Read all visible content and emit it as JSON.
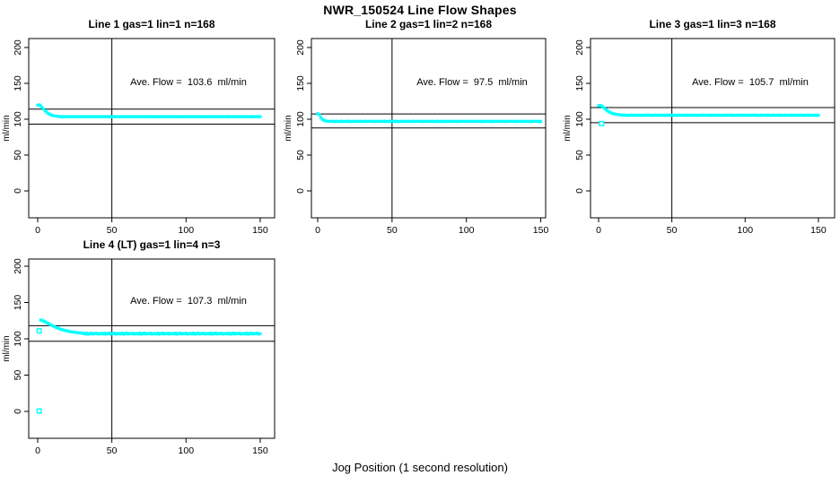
{
  "figure": {
    "title": "NWR_150524  Line Flow Shapes",
    "xlabel": "Jog Position (1 second resolution)",
    "background": "#ffffff",
    "axis_color": "#000000",
    "marker_color": "#00ffff"
  },
  "chart_data": [
    {
      "type": "scatter",
      "title": "Line 1 gas=1 lin=1 n=168",
      "annotation": "Ave. Flow =  103.6  ml/min",
      "ave_flow_ml_min": 103.6,
      "ylabel": "ml/min",
      "x_ticks": [
        0,
        50,
        100,
        150
      ],
      "y_ticks": [
        0,
        50,
        100,
        150,
        200
      ],
      "xlim": [
        -6,
        156
      ],
      "ylim": [
        -37,
        212
      ],
      "vline_x": 50,
      "hlines": [
        114.0,
        93.2
      ],
      "grid": false,
      "series": {
        "x_start": 0,
        "x_step": 1,
        "y": [
          119.5,
          120.0,
          118.8,
          116.5,
          114.0,
          111.8,
          110.0,
          108.3,
          107.0,
          106.0,
          105.3,
          104.8,
          104.4,
          104.1,
          103.9,
          103.6,
          103.3,
          103.7,
          103.2,
          103.5,
          103.8,
          103.4,
          103.6,
          103.6,
          103.3,
          103.7,
          103.2,
          103.5,
          103.8,
          103.4,
          103.6,
          103.6,
          103.3,
          103.7,
          103.2,
          103.5,
          103.8,
          103.4,
          103.6,
          103.6,
          103.3,
          103.7,
          103.2,
          103.5,
          103.8,
          103.4,
          103.6,
          103.6,
          103.3,
          103.7,
          103.2,
          103.5,
          103.8,
          103.4,
          103.6,
          103.6,
          103.3,
          103.7,
          103.2,
          103.5,
          103.8,
          103.4,
          103.6,
          103.6,
          103.3,
          103.7,
          103.2,
          103.5,
          103.8,
          103.4,
          103.6,
          103.6,
          103.3,
          103.7,
          103.2,
          103.5,
          103.8,
          103.4,
          103.6,
          103.6,
          103.3,
          103.7,
          103.2,
          103.5,
          103.8,
          103.4,
          103.6,
          103.6,
          103.3,
          103.7,
          103.2,
          103.5,
          103.8,
          103.4,
          103.6,
          103.6,
          103.3,
          103.7,
          103.2,
          103.5,
          103.8,
          103.4,
          103.6,
          103.6,
          103.3,
          103.7,
          103.2,
          103.5,
          103.8,
          103.4,
          103.6,
          103.6,
          103.3,
          103.7,
          103.2,
          103.5,
          103.8,
          103.4,
          103.6,
          103.6,
          103.3,
          103.7,
          103.2,
          103.5,
          103.8,
          103.4,
          103.6,
          103.6,
          103.3,
          103.7,
          103.2,
          103.5,
          103.8,
          103.4,
          103.6,
          103.6,
          103.3,
          103.7,
          103.2,
          103.5,
          103.8,
          103.4,
          103.6,
          103.6,
          103.3,
          103.7,
          103.2,
          103.5,
          103.8,
          103.4,
          103.6
        ]
      },
      "open_points": []
    },
    {
      "type": "scatter",
      "title": "Line 2 gas=1 lin=2 n=168",
      "annotation": "Ave. Flow =  97.5  ml/min",
      "ave_flow_ml_min": 97.5,
      "ylabel": "ml/min",
      "x_ticks": [
        0,
        50,
        100,
        150
      ],
      "y_ticks": [
        0,
        50,
        100,
        150,
        200
      ],
      "xlim": [
        -6,
        156
      ],
      "ylim": [
        -37,
        212
      ],
      "vline_x": 50,
      "hlines": [
        107.3,
        87.8
      ],
      "grid": false,
      "series": {
        "x_start": 0,
        "x_step": 1,
        "y": [
          107.8,
          106.5,
          102.5,
          100.0,
          98.6,
          97.8,
          97.4,
          97.2,
          97.1,
          97.0,
          96.9,
          97.1,
          96.7,
          97.2,
          96.6,
          96.9,
          97.3,
          96.8,
          97.0,
          97.1,
          96.7,
          97.2,
          96.6,
          96.9,
          97.3,
          96.8,
          97.0,
          97.1,
          96.7,
          97.2,
          96.6,
          96.9,
          97.3,
          96.8,
          97.0,
          97.1,
          96.7,
          97.2,
          96.6,
          96.9,
          97.3,
          96.8,
          97.0,
          97.1,
          96.7,
          97.2,
          96.6,
          96.9,
          97.3,
          96.8,
          97.0,
          97.1,
          96.7,
          97.2,
          96.6,
          96.9,
          97.3,
          96.8,
          97.0,
          97.1,
          96.7,
          97.2,
          96.6,
          96.9,
          97.3,
          96.8,
          97.0,
          97.1,
          96.7,
          97.2,
          96.6,
          96.9,
          97.3,
          96.8,
          97.0,
          97.1,
          96.7,
          97.2,
          96.6,
          96.9,
          97.3,
          96.8,
          97.0,
          97.1,
          96.7,
          97.2,
          96.6,
          96.9,
          97.3,
          96.8,
          97.0,
          97.1,
          96.7,
          97.2,
          96.6,
          96.9,
          97.3,
          96.8,
          97.0,
          97.1,
          96.7,
          97.2,
          96.6,
          96.9,
          97.3,
          96.8,
          97.0,
          97.1,
          96.7,
          97.2,
          96.6,
          96.9,
          97.3,
          96.8,
          97.0,
          97.1,
          96.7,
          97.2,
          96.6,
          96.9,
          97.3,
          96.8,
          97.0,
          97.1,
          96.7,
          97.2,
          96.6,
          96.9,
          97.3,
          96.8,
          97.0,
          97.1,
          96.7,
          97.2,
          96.6,
          96.9,
          97.3,
          96.8,
          97.0,
          97.1,
          96.7,
          97.2,
          96.6,
          96.9,
          97.3,
          96.8,
          97.0,
          97.1,
          96.7,
          97.2,
          96.6
        ]
      },
      "open_points": []
    },
    {
      "type": "scatter",
      "title": "Line 3 gas=1 lin=3 n=168",
      "annotation": "Ave. Flow =  105.7  ml/min",
      "ave_flow_ml_min": 105.7,
      "ylabel": "ml/min",
      "x_ticks": [
        0,
        50,
        100,
        150
      ],
      "y_ticks": [
        0,
        50,
        100,
        150,
        200
      ],
      "xlim": [
        -6,
        156
      ],
      "ylim": [
        -37,
        212
      ],
      "vline_x": 50,
      "hlines": [
        116.3,
        95.1
      ],
      "grid": false,
      "series": {
        "x_start": 0,
        "x_step": 1,
        "y": [
          118.8,
          119.2,
          118.5,
          117.0,
          115.2,
          113.4,
          111.8,
          110.4,
          109.3,
          108.4,
          107.7,
          107.2,
          106.8,
          106.5,
          106.2,
          106.0,
          105.9,
          105.8,
          105.7,
          105.3,
          105.8,
          105.2,
          105.5,
          105.9,
          105.4,
          105.6,
          105.7,
          105.3,
          105.8,
          105.2,
          105.5,
          105.9,
          105.4,
          105.6,
          105.7,
          105.3,
          105.8,
          105.2,
          105.5,
          105.9,
          105.4,
          105.6,
          105.7,
          105.3,
          105.8,
          105.2,
          105.5,
          105.9,
          105.4,
          105.6,
          105.7,
          105.3,
          105.8,
          105.2,
          105.5,
          105.9,
          105.4,
          105.6,
          105.7,
          105.3,
          105.8,
          105.2,
          105.5,
          105.9,
          105.4,
          105.6,
          105.7,
          105.3,
          105.8,
          105.2,
          105.5,
          105.9,
          105.4,
          105.6,
          105.7,
          105.3,
          105.8,
          105.2,
          105.5,
          105.9,
          105.4,
          105.6,
          105.7,
          105.3,
          105.8,
          105.2,
          105.5,
          105.9,
          105.4,
          105.6,
          105.7,
          105.3,
          105.8,
          105.2,
          105.5,
          105.9,
          105.4,
          105.6,
          105.7,
          105.3,
          105.8,
          105.2,
          105.5,
          105.9,
          105.4,
          105.6,
          105.7,
          105.3,
          105.8,
          105.2,
          105.5,
          105.9,
          105.4,
          105.6,
          105.7,
          105.3,
          105.8,
          105.2,
          105.5,
          105.9,
          105.4,
          105.6,
          105.7,
          105.3,
          105.8,
          105.2,
          105.5,
          105.9,
          105.4,
          105.6,
          105.7,
          105.3,
          105.8,
          105.2,
          105.5,
          105.9,
          105.4,
          105.6,
          105.7,
          105.3,
          105.8,
          105.2,
          105.5,
          105.9,
          105.4,
          105.6,
          105.7,
          105.3,
          105.8,
          105.2,
          105.5
        ]
      },
      "open_points": [
        [
          2,
          94
        ]
      ]
    },
    {
      "type": "scatter",
      "title": "Line 4 (LT) gas=1 lin=4 n=3",
      "annotation": "Ave. Flow =  107.3  ml/min",
      "ave_flow_ml_min": 107.3,
      "ylabel": "ml/min",
      "x_ticks": [
        0,
        50,
        100,
        150
      ],
      "y_ticks": [
        0,
        50,
        100,
        150,
        200
      ],
      "xlim": [
        -6,
        156
      ],
      "ylim": [
        -37,
        212
      ],
      "vline_x": 50,
      "hlines": [
        118.0,
        96.6
      ],
      "grid": false,
      "series": {
        "x_start": 2,
        "x_step": 1,
        "y": [
          125.8,
          125.2,
          124.4,
          123.4,
          122.3,
          121.2,
          120.1,
          119.0,
          118.0,
          117.0,
          116.1,
          115.2,
          114.4,
          113.6,
          112.9,
          112.3,
          111.7,
          111.2,
          110.7,
          110.3,
          109.9,
          109.5,
          109.2,
          108.9,
          108.6,
          108.4,
          108.2,
          108.0,
          107.8,
          107.4,
          106.6,
          107.8,
          106.3,
          107.1,
          107.9,
          106.5,
          107.3,
          106.9,
          107.6,
          106.4,
          107.0,
          107.4,
          106.6,
          107.8,
          106.3,
          107.1,
          107.9,
          106.5,
          107.3,
          106.9,
          107.6,
          106.4,
          107.0,
          107.4,
          106.6,
          107.8,
          106.3,
          107.1,
          107.9,
          106.5,
          107.3,
          106.9,
          107.6,
          106.4,
          107.0,
          107.4,
          106.6,
          107.8,
          106.3,
          107.1,
          107.9,
          106.5,
          107.3,
          106.9,
          107.6,
          106.4,
          107.0,
          107.4,
          106.6,
          107.8,
          106.3,
          107.1,
          107.9,
          106.5,
          107.3,
          106.9,
          107.6,
          106.4,
          107.0,
          107.4,
          106.6,
          107.8,
          106.3,
          107.1,
          107.9,
          106.5,
          107.3,
          106.9,
          107.6,
          106.4,
          107.0,
          107.4,
          106.6,
          107.8,
          106.3,
          107.1,
          107.9,
          106.5,
          107.3,
          106.9,
          107.6,
          106.4,
          107.0,
          107.4,
          106.6,
          107.8,
          106.3,
          107.1,
          107.9,
          106.5,
          107.3,
          106.9,
          107.6,
          106.4,
          107.0,
          107.4,
          106.6,
          107.8,
          106.3,
          107.1,
          107.9,
          106.5,
          107.3,
          106.9,
          107.6,
          106.4,
          107.0,
          107.4,
          106.6,
          107.8,
          106.3,
          107.1,
          107.9,
          106.5,
          107.3,
          106.9,
          107.6,
          106.4,
          107.0
        ]
      },
      "open_points": [
        [
          1,
          0.5
        ],
        [
          1,
          111
        ]
      ]
    }
  ]
}
